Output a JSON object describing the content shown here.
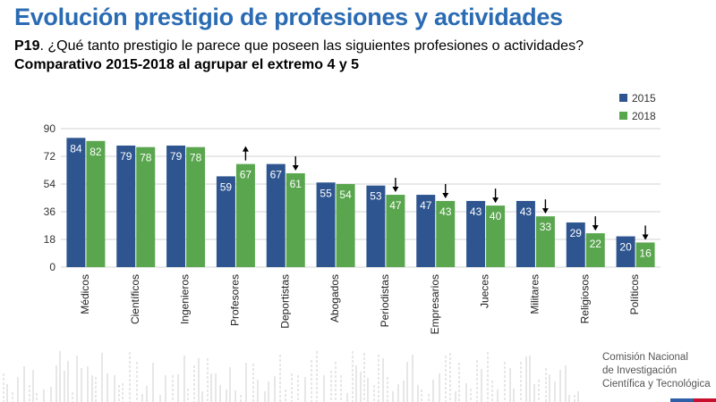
{
  "header": {
    "title": "Evolución prestigio de profesiones y actividades",
    "question_code": "P19",
    "question_text": ". ¿Qué tanto prestigio le parece que poseen las siguientes profesiones o actividades?",
    "subtitle": "Comparativo 2015-2018 al agrupar el extremo 4 y 5"
  },
  "footer": {
    "org_line1": "Comisión Nacional",
    "org_line2": "de Investigación",
    "org_line3": "Científica y Tecnológica",
    "flag_colors": [
      "#2f5fa7",
      "#c8102e"
    ]
  },
  "colors": {
    "series_2015": "#2e5590",
    "series_2018": "#5aa64f",
    "title": "#2a6bb3"
  },
  "chart_data": {
    "type": "bar",
    "categories": [
      "Médicos",
      "Científicos",
      "Ingenieros",
      "Profesores",
      "Deportistas",
      "Abogados",
      "Periodistas",
      "Empresarios",
      "Jueces",
      "Militares",
      "Religiosos",
      "Políticos"
    ],
    "series": [
      {
        "name": "2015",
        "values": [
          84,
          79,
          79,
          59,
          67,
          55,
          53,
          47,
          43,
          43,
          29,
          20
        ]
      },
      {
        "name": "2018",
        "values": [
          82,
          78,
          78,
          67,
          61,
          54,
          47,
          43,
          40,
          33,
          22,
          16
        ]
      }
    ],
    "change_arrows": [
      "",
      "",
      "",
      "up",
      "down",
      "",
      "down",
      "down",
      "down",
      "down",
      "down",
      "down"
    ],
    "yticks": [
      0,
      18,
      36,
      54,
      72,
      90
    ],
    "ylim": [
      0,
      90
    ],
    "grid": true,
    "legend_position": "top-right"
  }
}
